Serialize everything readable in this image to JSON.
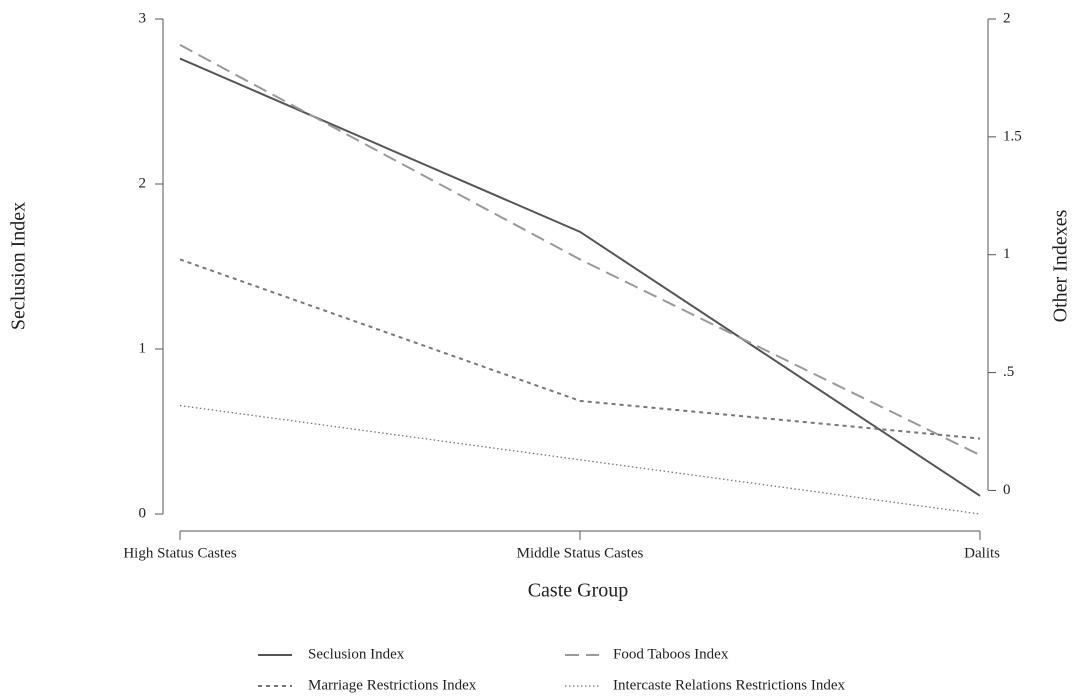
{
  "chart_data": {
    "type": "line",
    "x_label": "Caste Group",
    "y_label": "Seclusion Index",
    "y2_label": "Other Indexes",
    "categories": [
      "High Status Castes",
      "Middle Status Castes",
      "Dalits"
    ],
    "ylim": [
      0,
      3
    ],
    "yticks": [
      0,
      1,
      2,
      3
    ],
    "y2lim": [
      -0.1,
      2
    ],
    "y2ticks": [
      0,
      {
        "value": 0.5,
        "label": ".5"
      },
      1,
      1.5,
      2
    ],
    "series": [
      {
        "name": "Seclusion Index",
        "color": "#555555",
        "dash": "solid",
        "values": [
          2.76,
          1.71,
          0.11
        ]
      },
      {
        "name": "Food Taboos Index",
        "color": "#999999",
        "dash": "dash",
        "axis": "y2",
        "values": [
          1.89,
          0.98,
          0.15
        ]
      },
      {
        "name": "Marriage Restrictions Index",
        "color": "#777777",
        "dash": "dot",
        "axis": "y2",
        "values": [
          0.98,
          0.38,
          0.22
        ]
      },
      {
        "name": "Intercaste Relations Restrictions Index",
        "color": "#777777",
        "dash": "fine-dot",
        "axis": "y2",
        "values": [
          0.36,
          0.13,
          -0.1
        ]
      }
    ]
  }
}
